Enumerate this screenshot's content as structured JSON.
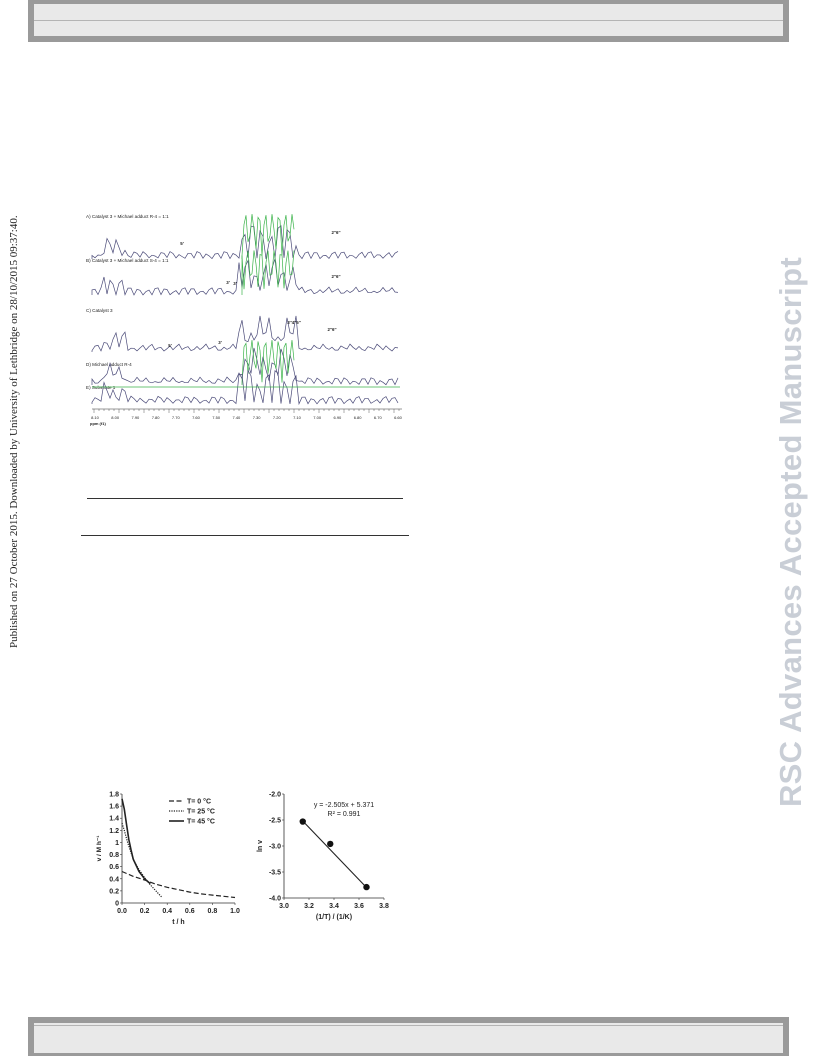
{
  "header": {
    "bar_label": ""
  },
  "side_note": {
    "text": "Published on 27 October 2015. Downloaded by University of Lethbridge on 28/10/2015 09:37:40."
  },
  "watermark": {
    "text": "RSC Advances Accepted Manuscript"
  },
  "nmr_figure": {
    "traces": [
      {
        "label": "A) Catalyst 3 + Michael adduct R-4 = 1:1"
      },
      {
        "label": "B) Catalyst 3 + Michael adduct S-4 = 1:1"
      },
      {
        "label": "C) Catalyst 3"
      },
      {
        "label": "D) Michael adduct R-4"
      },
      {
        "label": "E) Substrate 1"
      }
    ],
    "peak_labels": [
      "5'",
      "3'",
      "3'",
      "5'",
      "3'",
      "2''6''",
      "2''6''",
      "3''4''5''",
      "2''6''"
    ],
    "axis_ticks": [
      "8.10",
      "8.00",
      "7.90",
      "7.80",
      "7.70",
      "7.60",
      "7.50",
      "7.40",
      "7.30",
      "7.20",
      "7.10",
      "7.00",
      "6.90",
      "6.80",
      "6.70",
      "6.60"
    ],
    "axis_label": "ppm (f1)",
    "colors": {
      "spectrum": "#4a4a78",
      "highlight": "#3bb34a"
    }
  },
  "chart_data": [
    {
      "type": "line",
      "xlabel": "t / h",
      "ylabel": "v / M h⁻¹",
      "xlim": [
        0,
        1.0
      ],
      "ylim": [
        0,
        1.8
      ],
      "xticks": [
        "0.0",
        "0.2",
        "0.4",
        "0.6",
        "0.8",
        "1.0"
      ],
      "yticks": [
        "0",
        "0.2",
        "0.4",
        "0.6",
        "0.8",
        "1",
        "1.2",
        "1.4",
        "1.6",
        "1.8"
      ],
      "legend_position": "top-right",
      "series": [
        {
          "name": "T= 0 °C",
          "style": "dashed",
          "x": [
            0.0,
            0.1,
            0.2,
            0.3,
            0.4,
            0.5,
            0.6,
            0.7,
            0.8,
            0.9,
            1.0
          ],
          "y": [
            0.52,
            0.44,
            0.38,
            0.31,
            0.26,
            0.22,
            0.18,
            0.15,
            0.13,
            0.11,
            0.09
          ]
        },
        {
          "name": "T= 25 °C",
          "style": "dotted",
          "x": [
            0.0,
            0.02,
            0.05,
            0.1,
            0.15,
            0.2,
            0.25,
            0.3,
            0.35
          ],
          "y": [
            1.32,
            1.2,
            1.0,
            0.72,
            0.55,
            0.42,
            0.3,
            0.2,
            0.1
          ]
        },
        {
          "name": "T= 45 °C",
          "style": "solid",
          "x": [
            0.0,
            0.02,
            0.04,
            0.06,
            0.08,
            0.1,
            0.15,
            0.2,
            0.25
          ],
          "y": [
            1.72,
            1.55,
            1.3,
            1.05,
            0.88,
            0.72,
            0.52,
            0.4,
            0.32
          ]
        }
      ]
    },
    {
      "type": "scatter",
      "xlabel": "(1/T) / (1/K)",
      "ylabel": "ln v",
      "xlim": [
        3.0,
        3.8
      ],
      "ylim": [
        -4.0,
        -2.0
      ],
      "xticks": [
        "3.0",
        "3.2",
        "3.4",
        "3.6",
        "3.8"
      ],
      "yticks": [
        "-2.0",
        "-2.5",
        "-3.0",
        "-3.5",
        "-4.0"
      ],
      "equation": "y = -2.505x + 5.371",
      "r2": "R² = 0.991",
      "points": {
        "x": [
          3.15,
          3.37,
          3.66
        ],
        "y": [
          -2.53,
          -2.96,
          -3.79
        ]
      },
      "fit": {
        "slope": -2.505,
        "intercept": 5.371
      }
    }
  ]
}
